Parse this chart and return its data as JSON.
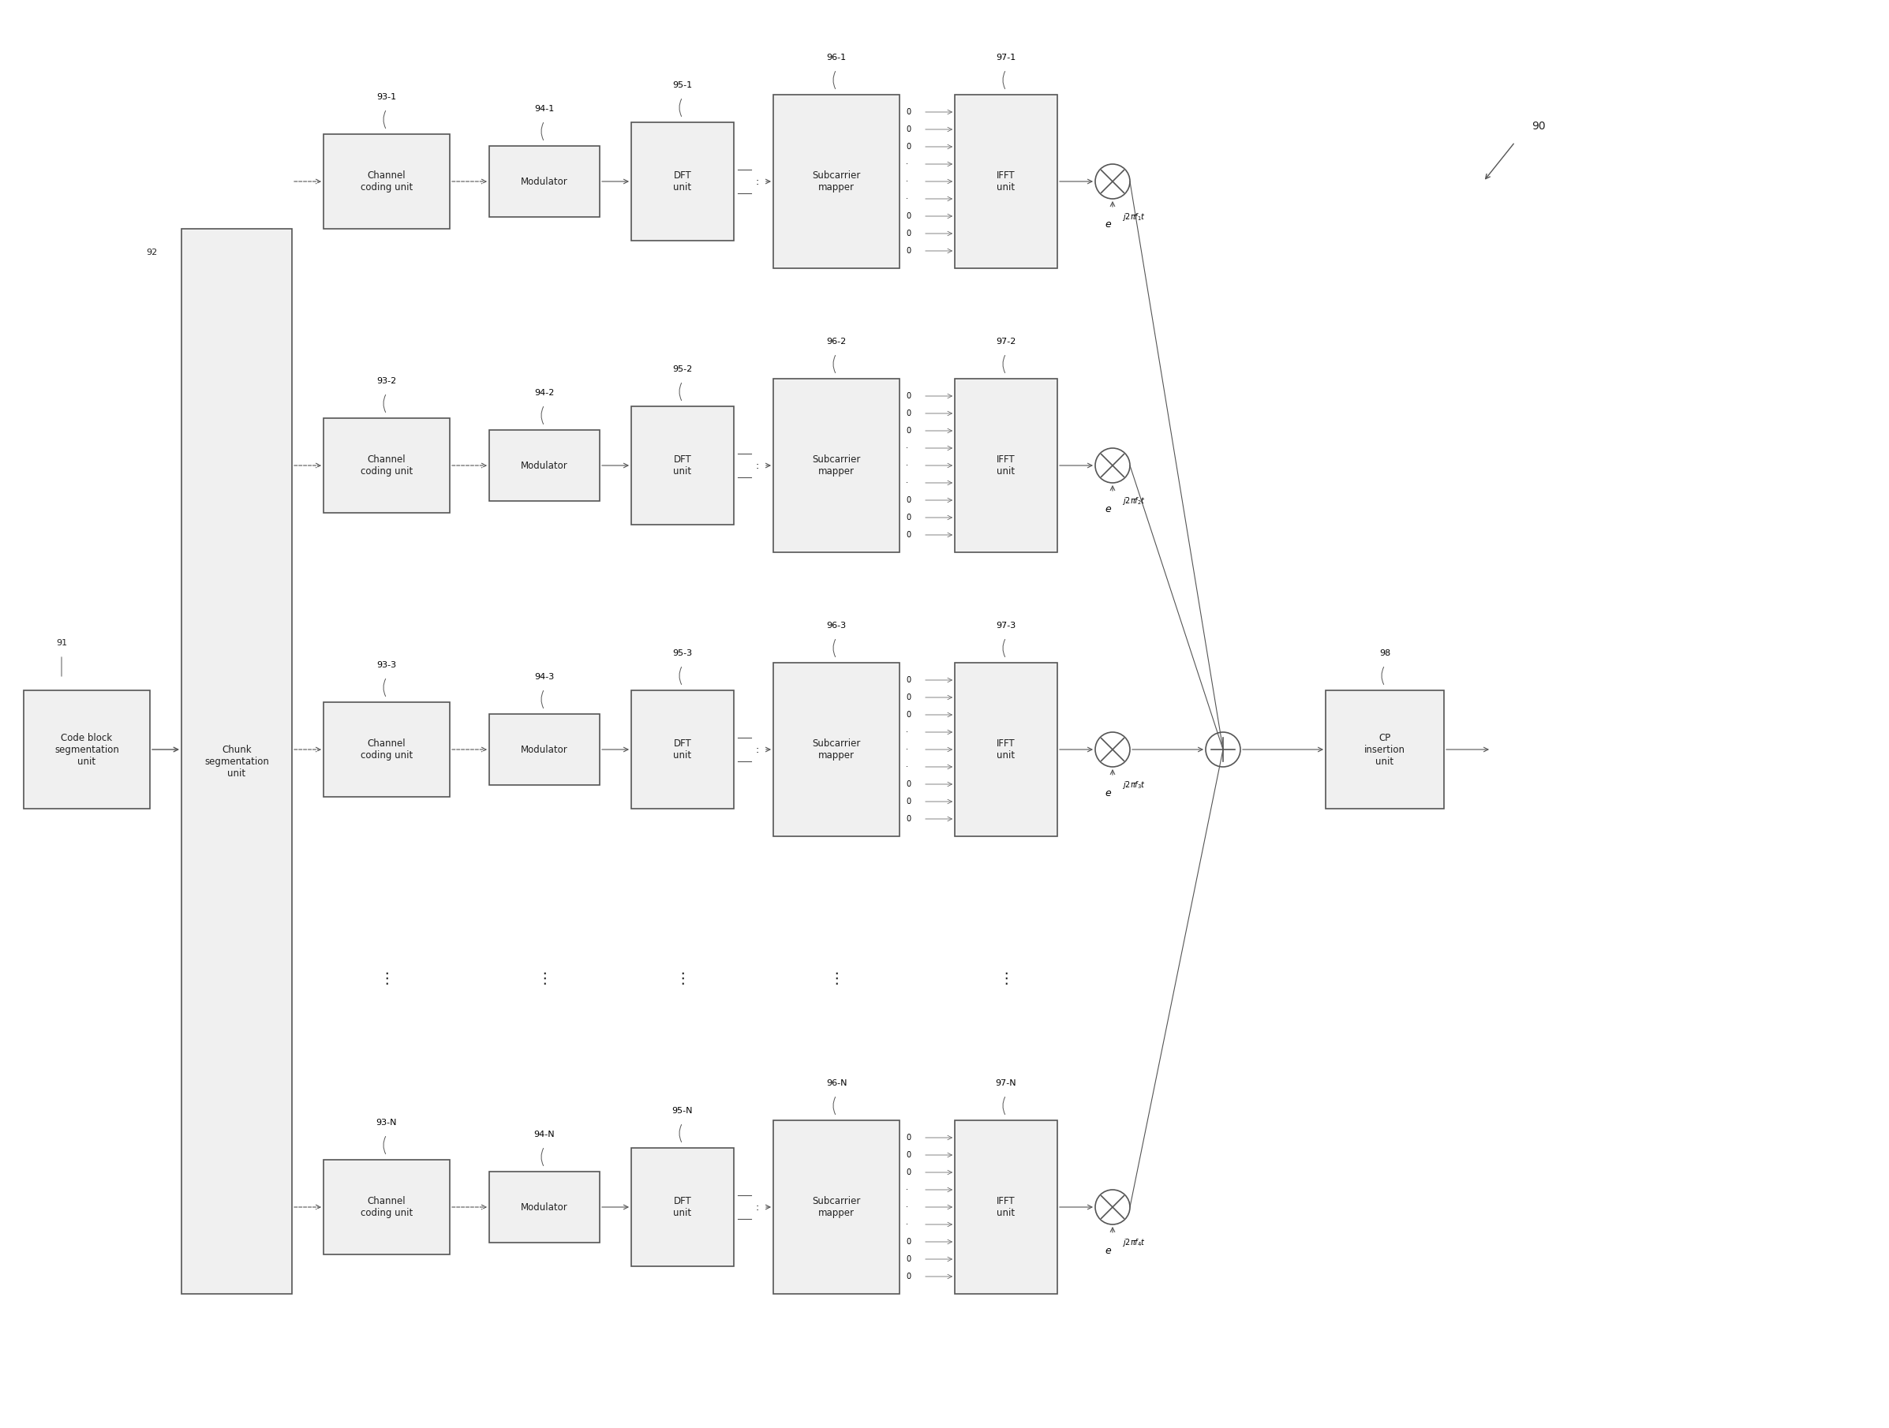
{
  "bg_color": "#ffffff",
  "box_edge_color": "#555555",
  "box_face_color": "#f0f0f0",
  "text_color": "#222222",
  "arrow_color": "#555555",
  "rows": [
    "1",
    "2",
    "3",
    "N"
  ],
  "row_labels": [
    "93-1",
    "93-2",
    "93-3",
    "93-N"
  ],
  "mod_labels": [
    "94-1",
    "94-2",
    "94-3",
    "94-N"
  ],
  "dft_labels": [
    "95-1",
    "95-2",
    "95-3",
    "95-N"
  ],
  "sub_labels": [
    "96-1",
    "96-2",
    "96-3",
    "96-N"
  ],
  "ifft_labels": [
    "97-1",
    "97-2",
    "97-3",
    "97-N"
  ],
  "exp_labels": [
    "e^{j2\\pi f_1 t}",
    "e^{j2\\pi f_2 t}",
    "e^{j2\\pi f_3 t}",
    "e^{j2\\pi f_N t}"
  ],
  "label_91": "91",
  "label_92": "92",
  "label_90": "90",
  "label_98": "98"
}
